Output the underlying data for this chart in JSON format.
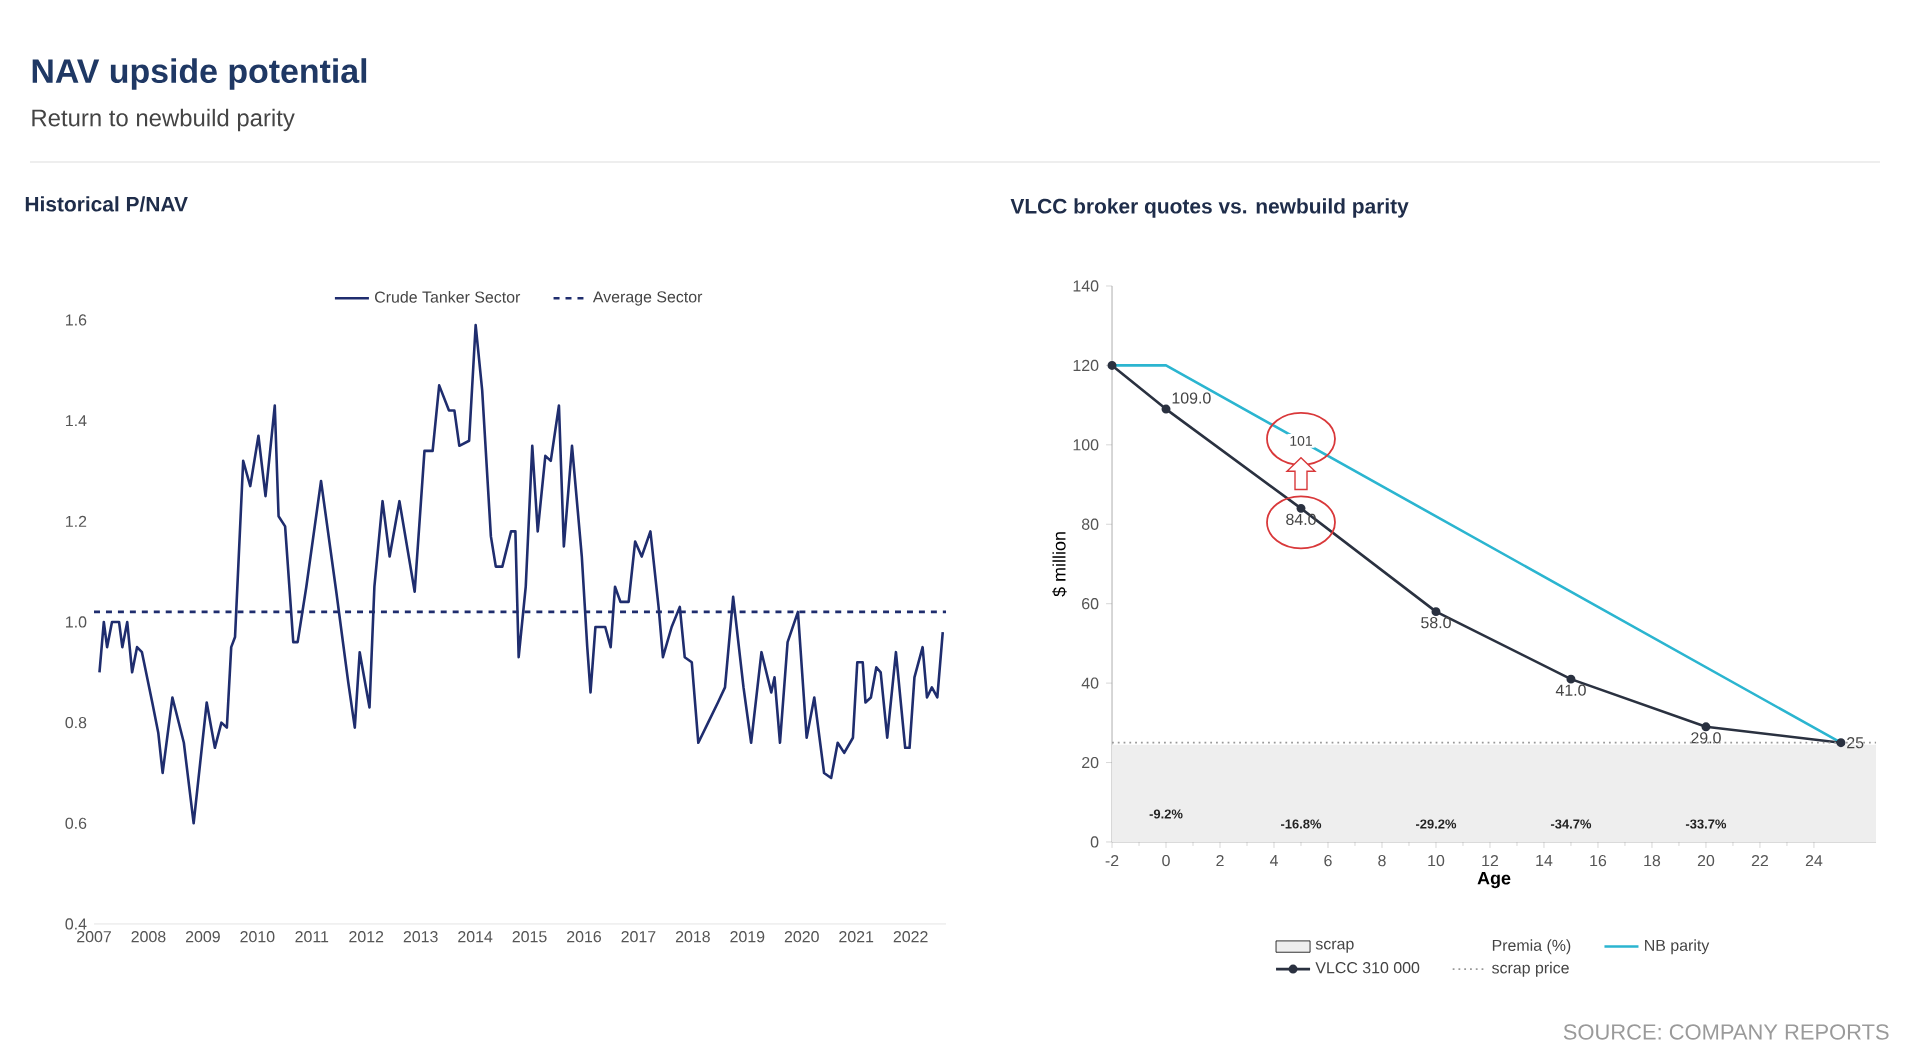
{
  "chart_data": [
    {
      "type": "other",
      "title": "NAV upside potential",
      "subtitle": "Return to newbuild parity",
      "annotations": [
        "SOURCE: COMPANY REPORTS"
      ]
    },
    {
      "type": "line",
      "title": "Historical P/NAV",
      "x": [
        2007.1,
        2007.18,
        2007.24,
        2007.33,
        2007.46,
        2007.52,
        2007.61,
        2007.7,
        2007.79,
        2007.88,
        2008.07,
        2008.18,
        2008.26,
        2008.44,
        2008.65,
        2008.83,
        2009.07,
        2009.22,
        2009.34,
        2009.44,
        2009.52,
        2009.59,
        2009.74,
        2009.87,
        2010.02,
        2010.15,
        2010.32,
        2010.39,
        2010.51,
        2010.66,
        2010.74,
        2010.9,
        2011.17,
        2011.45,
        2011.67,
        2011.79,
        2011.88,
        2012.06,
        2012.15,
        2012.3,
        2012.43,
        2012.61,
        2012.89,
        2013.07,
        2013.22,
        2013.34,
        2013.52,
        2013.62,
        2013.71,
        2013.89,
        2014.01,
        2014.13,
        2014.29,
        2014.38,
        2014.5,
        2014.66,
        2014.74,
        2014.8,
        2014.93,
        2015.05,
        2015.15,
        2015.29,
        2015.39,
        2015.54,
        2015.63,
        2015.78,
        2015.96,
        2016.06,
        2016.12,
        2016.21,
        2016.39,
        2016.49,
        2016.57,
        2016.67,
        2016.82,
        2016.94,
        2017.06,
        2017.22,
        2017.37,
        2017.45,
        2017.61,
        2017.76,
        2017.85,
        2017.98,
        2018.1,
        2018.28,
        2018.46,
        2018.59,
        2018.74,
        2018.93,
        2019.07,
        2019.26,
        2019.44,
        2019.5,
        2019.6,
        2019.74,
        2019.93,
        2020.09,
        2020.23,
        2020.41,
        2020.54,
        2020.66,
        2020.78,
        2020.94,
        2021.02,
        2021.12,
        2021.17,
        2021.27,
        2021.37,
        2021.45,
        2021.57,
        2021.73,
        2021.9,
        2021.98,
        2022.07,
        2022.22,
        2022.3,
        2022.39,
        2022.49,
        2022.59
      ],
      "series": [
        {
          "name": "Crude Tanker Sector",
          "color": "#1f2d6e",
          "values": [
            0.9,
            1.0,
            0.95,
            1.0,
            1.0,
            0.95,
            1.0,
            0.9,
            0.95,
            0.94,
            0.84,
            0.78,
            0.7,
            0.85,
            0.76,
            0.6,
            0.84,
            0.75,
            0.8,
            0.79,
            0.95,
            0.97,
            1.32,
            1.27,
            1.37,
            1.25,
            1.43,
            1.21,
            1.19,
            0.96,
            0.96,
            1.07,
            1.28,
            1.06,
            0.88,
            0.79,
            0.94,
            0.83,
            1.07,
            1.24,
            1.13,
            1.24,
            1.06,
            1.34,
            1.34,
            1.47,
            1.42,
            1.42,
            1.35,
            1.36,
            1.59,
            1.46,
            1.17,
            1.11,
            1.11,
            1.18,
            1.18,
            0.93,
            1.07,
            1.35,
            1.18,
            1.33,
            1.32,
            1.43,
            1.15,
            1.35,
            1.13,
            0.95,
            0.86,
            0.99,
            0.99,
            0.95,
            1.07,
            1.04,
            1.04,
            1.16,
            1.13,
            1.18,
            1.03,
            0.93,
            0.99,
            1.03,
            0.93,
            0.92,
            0.76,
            0.8,
            0.84,
            0.87,
            1.05,
            0.87,
            0.76,
            0.94,
            0.86,
            0.89,
            0.76,
            0.96,
            1.02,
            0.77,
            0.85,
            0.7,
            0.69,
            0.76,
            0.74,
            0.77,
            0.92,
            0.92,
            0.84,
            0.85,
            0.91,
            0.9,
            0.77,
            0.94,
            0.75,
            0.75,
            0.89,
            0.95,
            0.85,
            0.87,
            0.85,
            0.98
          ]
        }
      ],
      "ref_lines": [
        {
          "axis": "y",
          "value": 1.02,
          "label": "Average Sector",
          "color": "#1f2d6e",
          "line_style": "dashed"
        }
      ],
      "xlim": [
        2007,
        2022.65
      ],
      "ylim": [
        0.4,
        1.6
      ],
      "xticks": [
        2007,
        2008,
        2009,
        2010,
        2011,
        2012,
        2013,
        2014,
        2015,
        2016,
        2017,
        2018,
        2019,
        2020,
        2021,
        2022
      ],
      "yticks": [
        0.4,
        0.6,
        0.8,
        {
          "value": 1,
          "label": "1.0"
        },
        1.2,
        1.4,
        1.6
      ],
      "legend": "top"
    },
    {
      "type": "line",
      "title": "VLCC broker quotes vs. newbuild parity",
      "xlabel": "Age",
      "ylabel": "$ million",
      "series": [
        {
          "name": "NB parity",
          "color": "#2bb5d0",
          "x": [
            -2,
            0,
            25
          ],
          "values": [
            120,
            120,
            25
          ]
        },
        {
          "name": "VLCC 310 000",
          "color": "#2a3140",
          "marker": "circle",
          "x": [
            -2,
            0,
            5,
            10,
            15,
            20,
            25
          ],
          "values": [
            120,
            109,
            84,
            58,
            41,
            29,
            25
          ],
          "value_labels": [
            null,
            "109.0",
            "84.0",
            "58.0",
            "41.0",
            "29.0",
            "25"
          ]
        }
      ],
      "bands": [
        {
          "axis": "y",
          "from": 0,
          "to": 24.5,
          "label": "scrap",
          "color": "#eeeeee"
        }
      ],
      "ref_lines": [
        {
          "axis": "y",
          "value": 25,
          "label": "scrap price",
          "color": "#999999",
          "line_style": "dotted"
        }
      ],
      "annotations": [
        "Premia (%)",
        "-9.2%",
        "-16.8%",
        "-29.2%",
        "-34.7%",
        "-33.7%",
        {
          "text": "101",
          "x": 5,
          "y": 101
        }
      ],
      "xlim": [
        -2,
        26.3
      ],
      "ylim": [
        0,
        140
      ],
      "xticks": [
        -2,
        0,
        2,
        4,
        6,
        8,
        10,
        12,
        14,
        16,
        18,
        20,
        22,
        24
      ],
      "yticks": [
        0,
        20,
        40,
        60,
        80,
        100,
        120,
        140
      ],
      "legend": "bottom"
    }
  ]
}
